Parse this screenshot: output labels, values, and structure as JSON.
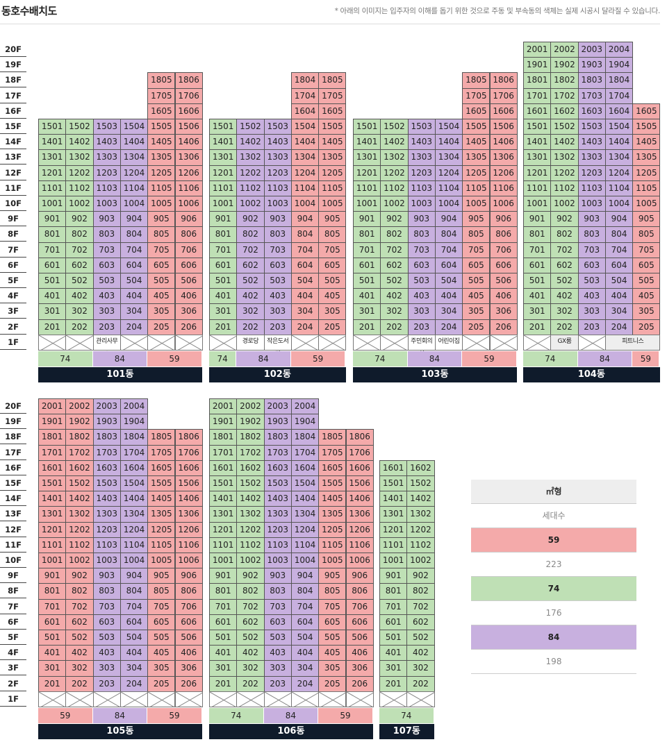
{
  "header": {
    "title": "동호수배치도",
    "note": "* 아래의 이미지는 입주자의 이해를 돕기 위한 것으로 주동 및 부속동의 색체는 실제 시공시 달라질 수 있습니다."
  },
  "floor_labels_top": [
    "20F",
    "19F",
    "18F",
    "17F",
    "16F",
    "15F",
    "14F",
    "13F",
    "12F",
    "11F",
    "10F",
    "9F",
    "8F",
    "7F",
    "6F",
    "5F",
    "4F",
    "3F",
    "2F",
    "1F"
  ],
  "floor_labels_bottom": [
    "20F",
    "19F",
    "18F",
    "17F",
    "16F",
    "15F",
    "14F",
    "13F",
    "12F",
    "11F",
    "10F",
    "9F",
    "8F",
    "7F",
    "6F",
    "5F",
    "4F",
    "3F",
    "2F",
    "1F"
  ],
  "colors": {
    "59": "#f4aaaa",
    "74": "#bfe0b5",
    "84": "#c8b0df",
    "building_label_bg": "#0f1b2b"
  },
  "buildings": [
    {
      "name": "101동",
      "lines": [
        {
          "line": "01",
          "type": "74",
          "top": 15
        },
        {
          "line": "02",
          "type": "74",
          "top": 15
        },
        {
          "line": "03",
          "type": "84",
          "top": 15
        },
        {
          "line": "04",
          "type": "84",
          "top": 15
        },
        {
          "line": "05",
          "type": "59",
          "top": 18
        },
        {
          "line": "06",
          "type": "59",
          "top": 18
        }
      ],
      "amenities": [
        {
          "label": "관리사무소",
          "from": 2,
          "span": 1
        }
      ],
      "types": [
        {
          "label": "74",
          "type": "74",
          "span": 2
        },
        {
          "label": "84",
          "type": "84",
          "span": 2
        },
        {
          "label": "59",
          "type": "59",
          "span": 2
        }
      ]
    },
    {
      "name": "102동",
      "lines": [
        {
          "line": "01",
          "type": "74",
          "top": 15
        },
        {
          "line": "02",
          "type": "84",
          "top": 15
        },
        {
          "line": "03",
          "type": "84",
          "top": 15
        },
        {
          "line": "04",
          "type": "59",
          "top": 18
        },
        {
          "line": "05",
          "type": "59",
          "top": 18
        }
      ],
      "amenities": [
        {
          "label": "경로당",
          "from": 1,
          "span": 1
        },
        {
          "label": "작은도서관",
          "from": 2,
          "span": 1
        }
      ],
      "types": [
        {
          "label": "74",
          "type": "74",
          "span": 1
        },
        {
          "label": "84",
          "type": "84",
          "span": 2
        },
        {
          "label": "59",
          "type": "59",
          "span": 2
        }
      ]
    },
    {
      "name": "103동",
      "lines": [
        {
          "line": "01",
          "type": "74",
          "top": 15
        },
        {
          "line": "02",
          "type": "74",
          "top": 15
        },
        {
          "line": "03",
          "type": "84",
          "top": 15
        },
        {
          "line": "04",
          "type": "84",
          "top": 15
        },
        {
          "line": "05",
          "type": "59",
          "top": 18
        },
        {
          "line": "06",
          "type": "59",
          "top": 18
        }
      ],
      "amenities": [
        {
          "label": "주민회의실",
          "from": 2,
          "span": 1
        },
        {
          "label": "어린이집",
          "from": 3,
          "span": 1
        }
      ],
      "types": [
        {
          "label": "74",
          "type": "74",
          "span": 2
        },
        {
          "label": "84",
          "type": "84",
          "span": 2
        },
        {
          "label": "59",
          "type": "59",
          "span": 2
        }
      ]
    },
    {
      "name": "104동",
      "lines": [
        {
          "line": "01",
          "type": "74",
          "top": 20
        },
        {
          "line": "02",
          "type": "74",
          "top": 20
        },
        {
          "line": "03",
          "type": "84",
          "top": 20
        },
        {
          "line": "04",
          "type": "84",
          "top": 20
        },
        {
          "line": "05",
          "type": "59",
          "top": 16
        }
      ],
      "amenities": [
        {
          "label": "GX룸",
          "from": 1,
          "span": 1
        },
        {
          "label": "피트니스",
          "from": 3,
          "span": 2
        }
      ],
      "types": [
        {
          "label": "74",
          "type": "74",
          "span": 2
        },
        {
          "label": "84",
          "type": "84",
          "span": 2
        },
        {
          "label": "59",
          "type": "59",
          "span": 1
        }
      ]
    },
    {
      "name": "105동",
      "lines": [
        {
          "line": "01",
          "type": "59",
          "top": 20
        },
        {
          "line": "02",
          "type": "59",
          "top": 20
        },
        {
          "line": "03",
          "type": "84",
          "top": 20
        },
        {
          "line": "04",
          "type": "84",
          "top": 20
        },
        {
          "line": "05",
          "type": "59",
          "top": 18
        },
        {
          "line": "06",
          "type": "59",
          "top": 18
        }
      ],
      "amenities": [],
      "types": [
        {
          "label": "59",
          "type": "59",
          "span": 2
        },
        {
          "label": "84",
          "type": "84",
          "span": 2
        },
        {
          "label": "59",
          "type": "59",
          "span": 2
        }
      ]
    },
    {
      "name": "106동",
      "lines": [
        {
          "line": "01",
          "type": "74",
          "top": 20
        },
        {
          "line": "02",
          "type": "74",
          "top": 20
        },
        {
          "line": "03",
          "type": "84",
          "top": 20
        },
        {
          "line": "04",
          "type": "84",
          "top": 20
        },
        {
          "line": "05",
          "type": "59",
          "top": 18
        },
        {
          "line": "06",
          "type": "59",
          "top": 18
        }
      ],
      "amenities": [],
      "types": [
        {
          "label": "74",
          "type": "74",
          "span": 2
        },
        {
          "label": "84",
          "type": "84",
          "span": 2
        },
        {
          "label": "59",
          "type": "59",
          "span": 2
        }
      ]
    },
    {
      "name": "107동",
      "lines": [
        {
          "line": "01",
          "type": "74",
          "top": 16
        },
        {
          "line": "02",
          "type": "74",
          "top": 16
        }
      ],
      "amenities": [],
      "types": [
        {
          "label": "74",
          "type": "74",
          "span": 2
        }
      ]
    }
  ],
  "legend": {
    "header": "㎡형",
    "subheader": "세대수",
    "rows": [
      {
        "type": "59",
        "count": "223"
      },
      {
        "type": "74",
        "count": "176"
      },
      {
        "type": "84",
        "count": "198"
      }
    ]
  }
}
